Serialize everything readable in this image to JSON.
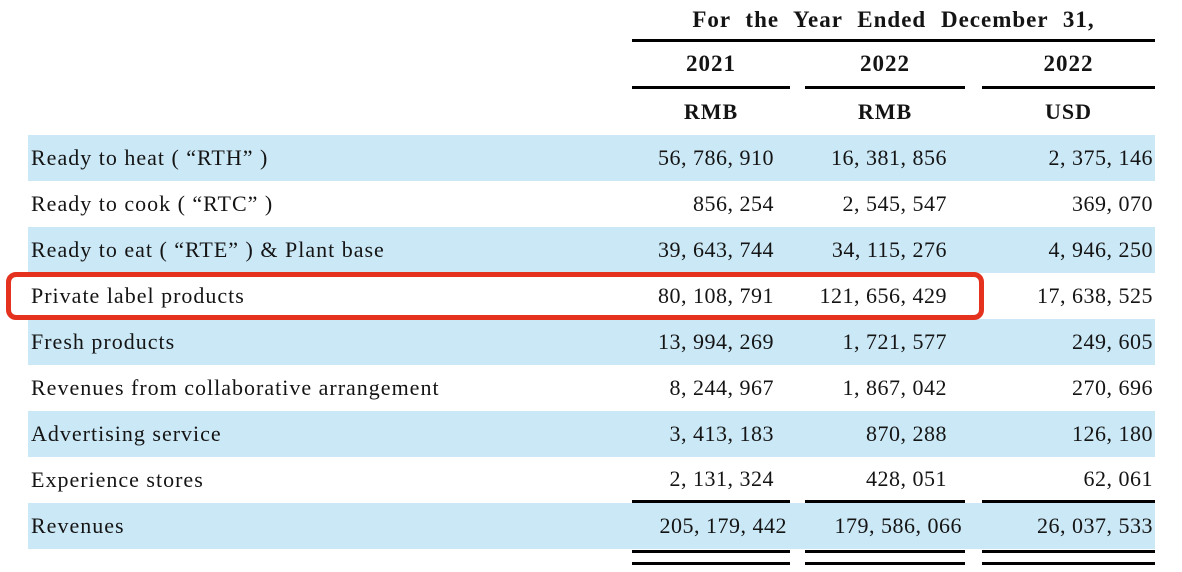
{
  "table": {
    "header": {
      "title": "For the Year Ended December 31,",
      "columns": [
        {
          "year": "2021",
          "currency": "RMB"
        },
        {
          "year": "2022",
          "currency": "RMB"
        },
        {
          "year": "2022",
          "currency": "USD"
        }
      ]
    },
    "rows": [
      {
        "label": "Ready to heat ( “RTH” )",
        "values": [
          "56, 786, 910",
          "16, 381, 856",
          "2, 375, 146"
        ],
        "shaded": true,
        "highlighted": false,
        "rule_below": false,
        "total": false
      },
      {
        "label": "Ready to cook ( “RTC” )",
        "values": [
          "856, 254",
          "2, 545, 547",
          "369, 070"
        ],
        "shaded": false,
        "highlighted": false,
        "rule_below": false,
        "total": false
      },
      {
        "label": "Ready to eat ( “RTE” ) & Plant base",
        "values": [
          "39, 643, 744",
          "34, 115, 276",
          "4, 946, 250"
        ],
        "shaded": true,
        "highlighted": false,
        "rule_below": false,
        "total": false
      },
      {
        "label": "Private label products",
        "values": [
          "80, 108, 791",
          "121, 656, 429",
          "17, 638, 525"
        ],
        "shaded": false,
        "highlighted": true,
        "rule_below": false,
        "total": false
      },
      {
        "label": "Fresh products",
        "values": [
          "13, 994, 269",
          "1, 721, 577",
          "249, 605"
        ],
        "shaded": true,
        "highlighted": false,
        "rule_below": false,
        "total": false
      },
      {
        "label": "Revenues from collaborative arrangement",
        "values": [
          "8, 244, 967",
          "1, 867, 042",
          "270, 696"
        ],
        "shaded": false,
        "highlighted": false,
        "rule_below": false,
        "total": false
      },
      {
        "label": "Advertising service",
        "values": [
          "3, 413, 183",
          "870, 288",
          "126, 180"
        ],
        "shaded": true,
        "highlighted": false,
        "rule_below": false,
        "total": false
      },
      {
        "label": "Experience stores",
        "values": [
          "2, 131, 324",
          "428, 051",
          "62, 061"
        ],
        "shaded": false,
        "highlighted": false,
        "rule_below": true,
        "total": false
      },
      {
        "label": "Revenues",
        "values": [
          "205, 179, 442",
          "179, 586, 066",
          "26, 037, 533"
        ],
        "shaded": true,
        "highlighted": false,
        "rule_below": false,
        "total": true
      }
    ],
    "colors": {
      "row_shade": "#CBE8F6",
      "highlight_border": "#E5321E",
      "rule": "#000000",
      "text": "#141414"
    }
  }
}
